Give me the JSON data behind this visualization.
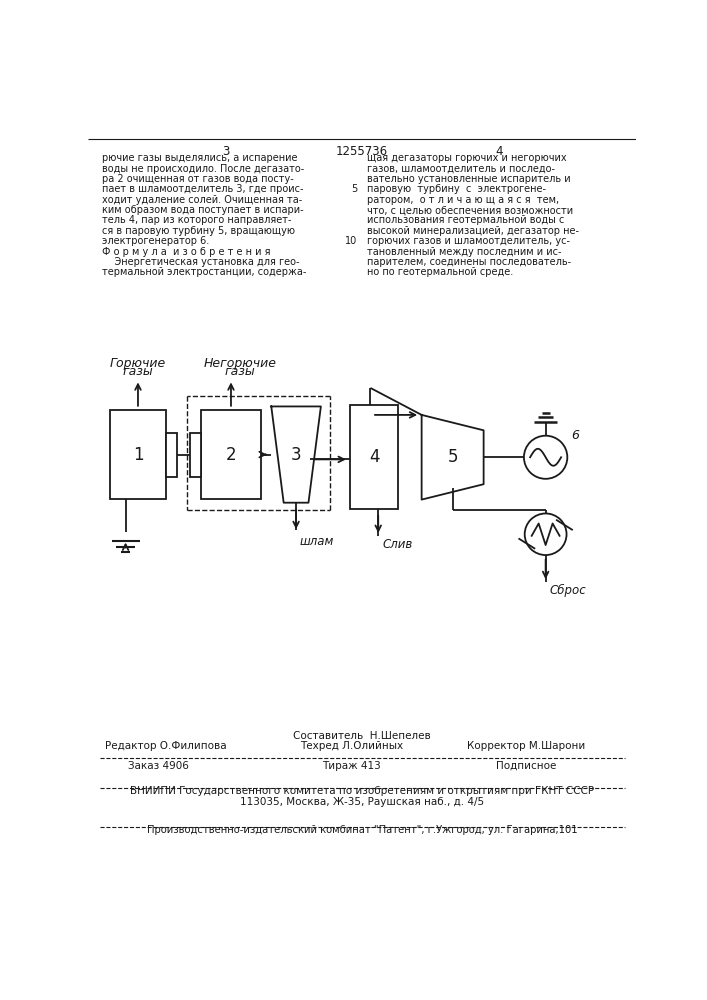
{
  "bg_color": "#ffffff",
  "text_color": "#1a1a1a",
  "line_color": "#1a1a1a",
  "page_number_left": "3",
  "page_number_center": "1255736",
  "page_number_right": "4",
  "text_left": "рючие газы выделялись, а испарение\nводы не происходило. После дегазато-\nра 2 очищенная от газов вода посту-\nпает в шламоотделитель 3, где проис-\nходит удаление солей. Очищенная та-\nким образом вода поступает в испари-\nтель 4, пар из которого направляет-\nся в паровую турбину 5, вращающую\nэлектрогенератор 6.\nФ о р м у л а  и з о б р е т е н и я\n    Энергетическая установка для гео-\nтермальной электростанции, содержа-",
  "text_right": "щая дегазаторы горючих и негорючих\nгазов, шламоотделитель и последо-\nвательно установленные испаритель и\nпаровую  турбину  с  электрогене-\nратором,  о т л и ч а ю щ а я с я  тем,\nчто, с целью обеспечения возможности\nиспользования геотермальной воды с\nвысокой минерализацией, дегазатор не-\nгорючих газов и шламоотделитель, ус-\nтановленный между последним и ис-\nпарителем, соединены последователь-\nно по геотермальной среде.",
  "footer_sestavitel": "Составитель  Н.Шепелев",
  "footer_redaktor": "Редактор О.Филипова",
  "footer_tekhred": "Техред Л.Олийных",
  "footer_korrektor": "Корректор М.Шарони",
  "footer_zakaz": "Заказ 4906",
  "footer_tirazh": "Тираж 413",
  "footer_podpisnoe": "Подписное",
  "footer_vniiipi": "ВНИИПИ Государственного комитета по изобретениям и открытиям при ГКНТ СССР",
  "footer_address": "113035, Москва, Ж-35, Раушская наб., д. 4/5",
  "footer_proizv": "Производственно-издательский комбинат \"Патент\", г.Ужгород, ул. Гагарина,101",
  "label_goryuchie_1": "Горючие",
  "label_goryuchie_2": "газы",
  "label_negor_1": "Негорючие",
  "label_negor_2": "газы",
  "label_shlam": "шлам",
  "label_sliv": "Слив",
  "label_sbros": "Сброс",
  "label_6": "6"
}
